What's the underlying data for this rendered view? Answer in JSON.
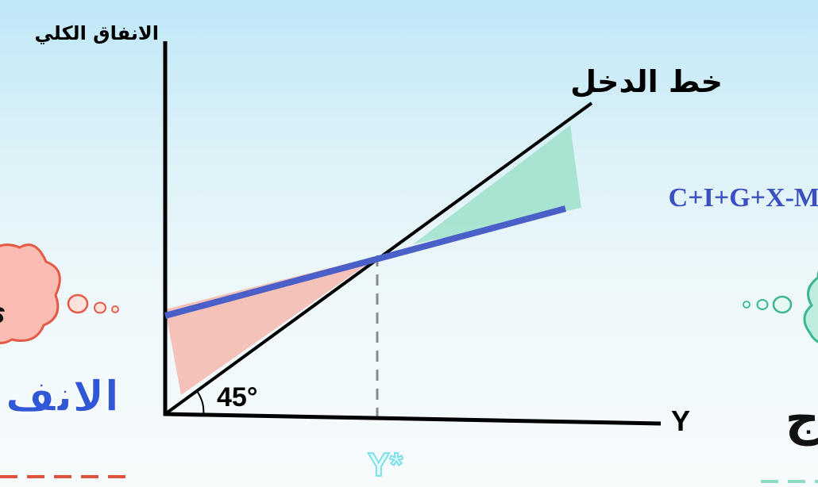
{
  "diagram": {
    "y_axis_label": "الانفاق الكلي",
    "x_axis_label": "Y",
    "income_line_label": "خط الدخل",
    "expenditure_line_label": "C+I+G+X-M",
    "angle_label": "45°",
    "equilibrium_label": "Y*",
    "left_cloud_text": "ي",
    "left_heading_fragment": "الانف",
    "right_heading_fragment": "ج",
    "colors": {
      "income_line": "#000000",
      "expenditure_line": "#4a5fc7",
      "expenditure_label": "#3a4fc0",
      "left_shade": "#f6b8ae",
      "right_shade": "#9fe0cb",
      "cloud_left": "#fbbcb4",
      "cloud_right": "#bfeee0",
      "heading_left": "#2f57d6",
      "dash_left": "#e0533c",
      "dash_right": "#8fd9c4",
      "y_star": "#7ee0e8"
    }
  }
}
